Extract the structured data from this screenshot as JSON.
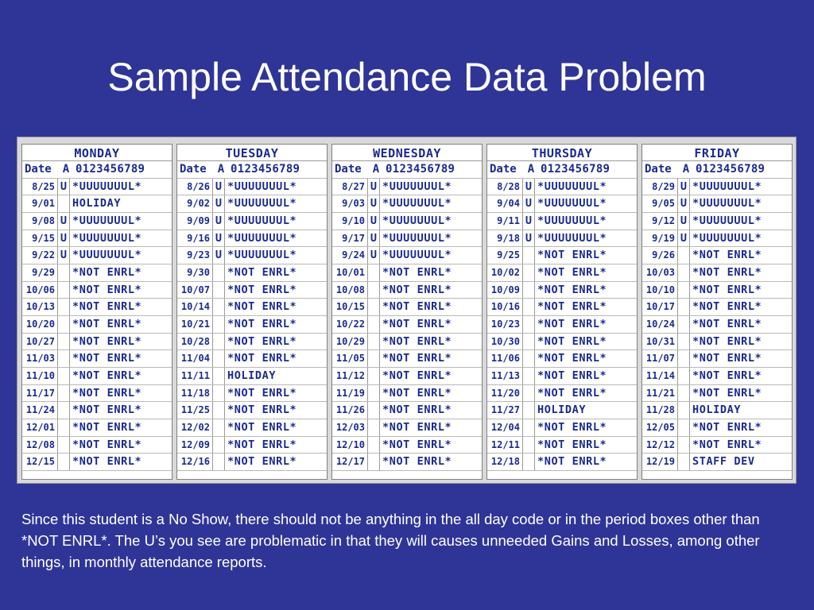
{
  "title": "Sample Attendance Data Problem",
  "caption": "Since this student is a No Show, there should not be anything in the all day code or in the period boxes other than *NOT ENRL*.  The U’s you see are problematic in that they will causes unneeded Gains and Losses, among other things, in monthly attendance reports.",
  "header": {
    "date": "Date",
    "all_day": "A",
    "periods": "0123456789"
  },
  "days": [
    {
      "name": "MONDAY",
      "rows": [
        {
          "date": "8/25",
          "a": "U",
          "p": "*UUUUUUUL*"
        },
        {
          "date": "9/01",
          "a": "",
          "p": "HOLIDAY"
        },
        {
          "date": "9/08",
          "a": "U",
          "p": "*UUUUUUUL*"
        },
        {
          "date": "9/15",
          "a": "U",
          "p": "*UUUUUUUL*"
        },
        {
          "date": "9/22",
          "a": "U",
          "p": "*UUUUUUUL*"
        },
        {
          "date": "9/29",
          "a": "",
          "p": "*NOT ENRL*"
        },
        {
          "date": "10/06",
          "a": "",
          "p": "*NOT ENRL*"
        },
        {
          "date": "10/13",
          "a": "",
          "p": "*NOT ENRL*"
        },
        {
          "date": "10/20",
          "a": "",
          "p": "*NOT ENRL*"
        },
        {
          "date": "10/27",
          "a": "",
          "p": "*NOT ENRL*"
        },
        {
          "date": "11/03",
          "a": "",
          "p": "*NOT ENRL*"
        },
        {
          "date": "11/10",
          "a": "",
          "p": "*NOT ENRL*"
        },
        {
          "date": "11/17",
          "a": "",
          "p": "*NOT ENRL*"
        },
        {
          "date": "11/24",
          "a": "",
          "p": "*NOT ENRL*"
        },
        {
          "date": "12/01",
          "a": "",
          "p": "*NOT ENRL*"
        },
        {
          "date": "12/08",
          "a": "",
          "p": "*NOT ENRL*"
        },
        {
          "date": "12/15",
          "a": "",
          "p": "*NOT ENRL*"
        }
      ]
    },
    {
      "name": "TUESDAY",
      "rows": [
        {
          "date": "8/26",
          "a": "U",
          "p": "*UUUUUUUL*"
        },
        {
          "date": "9/02",
          "a": "U",
          "p": "*UUUUUUUL*"
        },
        {
          "date": "9/09",
          "a": "U",
          "p": "*UUUUUUUL*"
        },
        {
          "date": "9/16",
          "a": "U",
          "p": "*UUUUUUUL*"
        },
        {
          "date": "9/23",
          "a": "U",
          "p": "*UUUUUUUL*"
        },
        {
          "date": "9/30",
          "a": "",
          "p": "*NOT ENRL*"
        },
        {
          "date": "10/07",
          "a": "",
          "p": "*NOT ENRL*"
        },
        {
          "date": "10/14",
          "a": "",
          "p": "*NOT ENRL*"
        },
        {
          "date": "10/21",
          "a": "",
          "p": "*NOT ENRL*"
        },
        {
          "date": "10/28",
          "a": "",
          "p": "*NOT ENRL*"
        },
        {
          "date": "11/04",
          "a": "",
          "p": "*NOT ENRL*"
        },
        {
          "date": "11/11",
          "a": "",
          "p": "HOLIDAY"
        },
        {
          "date": "11/18",
          "a": "",
          "p": "*NOT ENRL*"
        },
        {
          "date": "11/25",
          "a": "",
          "p": "*NOT ENRL*"
        },
        {
          "date": "12/02",
          "a": "",
          "p": "*NOT ENRL*"
        },
        {
          "date": "12/09",
          "a": "",
          "p": "*NOT ENRL*"
        },
        {
          "date": "12/16",
          "a": "",
          "p": "*NOT ENRL*"
        }
      ]
    },
    {
      "name": "WEDNESDAY",
      "rows": [
        {
          "date": "8/27",
          "a": "U",
          "p": "*UUUUUUUL*"
        },
        {
          "date": "9/03",
          "a": "U",
          "p": "*UUUUUUUL*"
        },
        {
          "date": "9/10",
          "a": "U",
          "p": "*UUUUUUUL*"
        },
        {
          "date": "9/17",
          "a": "U",
          "p": "*UUUUUUUL*"
        },
        {
          "date": "9/24",
          "a": "U",
          "p": "*UUUUUUUL*"
        },
        {
          "date": "10/01",
          "a": "",
          "p": "*NOT ENRL*"
        },
        {
          "date": "10/08",
          "a": "",
          "p": "*NOT ENRL*"
        },
        {
          "date": "10/15",
          "a": "",
          "p": "*NOT ENRL*"
        },
        {
          "date": "10/22",
          "a": "",
          "p": "*NOT ENRL*"
        },
        {
          "date": "10/29",
          "a": "",
          "p": "*NOT ENRL*"
        },
        {
          "date": "11/05",
          "a": "",
          "p": "*NOT ENRL*"
        },
        {
          "date": "11/12",
          "a": "",
          "p": "*NOT ENRL*"
        },
        {
          "date": "11/19",
          "a": "",
          "p": "*NOT ENRL*"
        },
        {
          "date": "11/26",
          "a": "",
          "p": "*NOT ENRL*"
        },
        {
          "date": "12/03",
          "a": "",
          "p": "*NOT ENRL*"
        },
        {
          "date": "12/10",
          "a": "",
          "p": "*NOT ENRL*"
        },
        {
          "date": "12/17",
          "a": "",
          "p": "*NOT ENRL*"
        }
      ]
    },
    {
      "name": "THURSDAY",
      "rows": [
        {
          "date": "8/28",
          "a": "U",
          "p": "*UUUUUUUL*"
        },
        {
          "date": "9/04",
          "a": "U",
          "p": "*UUUUUUUL*"
        },
        {
          "date": "9/11",
          "a": "U",
          "p": "*UUUUUUUL*"
        },
        {
          "date": "9/18",
          "a": "U",
          "p": "*UUUUUUUL*"
        },
        {
          "date": "9/25",
          "a": "",
          "p": "*NOT ENRL*"
        },
        {
          "date": "10/02",
          "a": "",
          "p": "*NOT ENRL*"
        },
        {
          "date": "10/09",
          "a": "",
          "p": "*NOT ENRL*"
        },
        {
          "date": "10/16",
          "a": "",
          "p": "*NOT ENRL*"
        },
        {
          "date": "10/23",
          "a": "",
          "p": "*NOT ENRL*"
        },
        {
          "date": "10/30",
          "a": "",
          "p": "*NOT ENRL*"
        },
        {
          "date": "11/06",
          "a": "",
          "p": "*NOT ENRL*"
        },
        {
          "date": "11/13",
          "a": "",
          "p": "*NOT ENRL*"
        },
        {
          "date": "11/20",
          "a": "",
          "p": "*NOT ENRL*"
        },
        {
          "date": "11/27",
          "a": "",
          "p": "HOLIDAY"
        },
        {
          "date": "12/04",
          "a": "",
          "p": "*NOT ENRL*"
        },
        {
          "date": "12/11",
          "a": "",
          "p": "*NOT ENRL*"
        },
        {
          "date": "12/18",
          "a": "",
          "p": "*NOT ENRL*"
        }
      ]
    },
    {
      "name": "FRIDAY",
      "rows": [
        {
          "date": "8/29",
          "a": "U",
          "p": "*UUUUUUUL*"
        },
        {
          "date": "9/05",
          "a": "U",
          "p": "*UUUUUUUL*"
        },
        {
          "date": "9/12",
          "a": "U",
          "p": "*UUUUUUUL*"
        },
        {
          "date": "9/19",
          "a": "U",
          "p": "*UUUUUUUL*"
        },
        {
          "date": "9/26",
          "a": "",
          "p": "*NOT ENRL*"
        },
        {
          "date": "10/03",
          "a": "",
          "p": "*NOT ENRL*"
        },
        {
          "date": "10/10",
          "a": "",
          "p": "*NOT ENRL*"
        },
        {
          "date": "10/17",
          "a": "",
          "p": "*NOT ENRL*"
        },
        {
          "date": "10/24",
          "a": "",
          "p": "*NOT ENRL*"
        },
        {
          "date": "10/31",
          "a": "",
          "p": "*NOT ENRL*"
        },
        {
          "date": "11/07",
          "a": "",
          "p": "*NOT ENRL*"
        },
        {
          "date": "11/14",
          "a": "",
          "p": "*NOT ENRL*"
        },
        {
          "date": "11/21",
          "a": "",
          "p": "*NOT ENRL*"
        },
        {
          "date": "11/28",
          "a": "",
          "p": "HOLIDAY"
        },
        {
          "date": "12/05",
          "a": "",
          "p": "*NOT ENRL*"
        },
        {
          "date": "12/12",
          "a": "",
          "p": "*NOT ENRL*"
        },
        {
          "date": "12/19",
          "a": "",
          "p": "STAFF DEV"
        }
      ]
    }
  ],
  "colors": {
    "background": "#2f3596",
    "table_text": "#1a2a8f",
    "table_bg": "#d9d9d9"
  }
}
